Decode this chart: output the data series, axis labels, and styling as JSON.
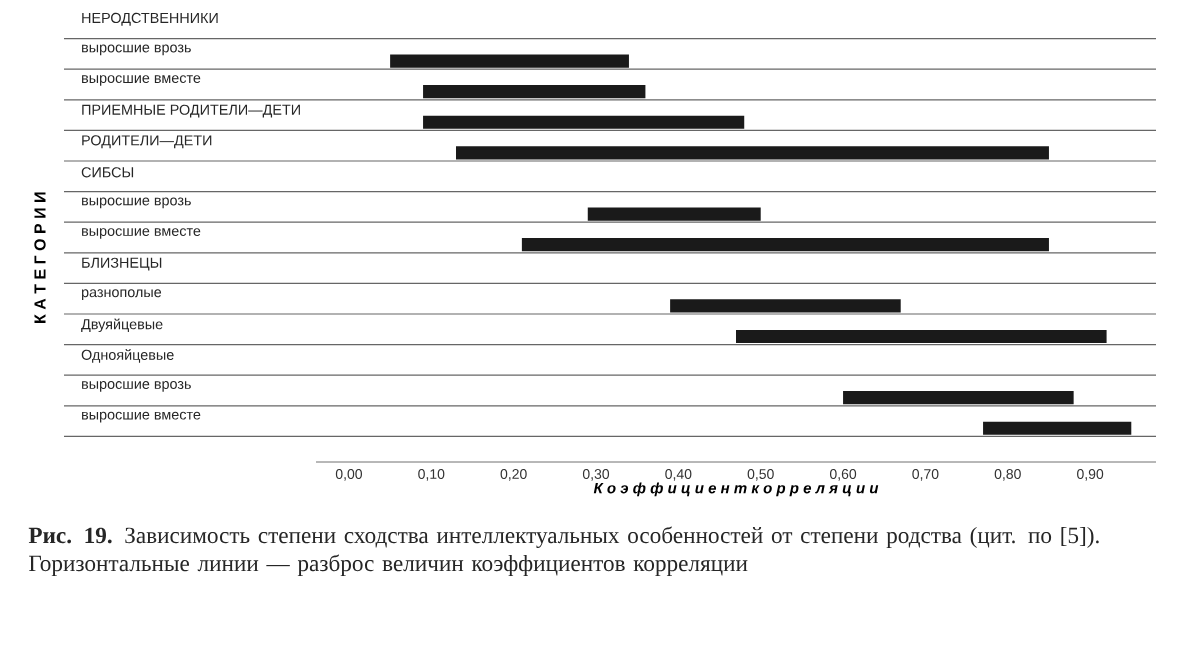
{
  "chart_data": {
    "type": "bar",
    "orientation": "horizontal",
    "categories": [
      "НЕРОДСТВЕННИКИ",
      "выросшие врозь",
      "выросшие вместе",
      "ПРИЕМНЫЕ РОДИТЕЛИ—ДЕТИ",
      "РОДИТЕЛИ—ДЕТИ",
      "СИБСЫ",
      "выросшие врозь",
      "выросшие вместе",
      "БЛИЗНЕЦЫ",
      "разнополые",
      "Двуяйцевые",
      "Однояйцевые",
      "выросшие врозь",
      "выросшие вместе"
    ],
    "base": [
      null,
      0.05,
      0.09,
      0.09,
      0.13,
      null,
      0.29,
      0.21,
      null,
      0.39,
      0.47,
      null,
      0.6,
      0.77
    ],
    "values": [
      null,
      0.29,
      0.27,
      0.39,
      0.72,
      null,
      0.21,
      0.64,
      null,
      0.28,
      0.45,
      null,
      0.28,
      0.18
    ],
    "color": "#1a1a1a",
    "xlim": [
      -0.04,
      0.98
    ],
    "xticks": [
      {
        "value": 0,
        "label": "0,00"
      },
      {
        "value": 0.1,
        "label": "0,10"
      },
      {
        "value": 0.2,
        "label": "0,20"
      },
      {
        "value": 0.3,
        "label": "0,30"
      },
      {
        "value": 0.4,
        "label": "0,40"
      },
      {
        "value": 0.5,
        "label": "0,50"
      },
      {
        "value": 0.6,
        "label": "0,60"
      },
      {
        "value": 0.7,
        "label": "0,70"
      },
      {
        "value": 0.8,
        "label": "0,80"
      },
      {
        "value": 0.9,
        "label": "0,90"
      }
    ],
    "xlabel": "К о э ф ф и ц и е н т   к о р р е л я ц и и",
    "ylabel": "К А Т Е Г О Р И И",
    "annotations": [
      "**Рис. 19.** Зависимость степени сходства интеллектуальных особенностей от степени родства (цит. по [5]). Горизонтальные линии — разброс величин коэффициентов корреляции"
    ]
  }
}
